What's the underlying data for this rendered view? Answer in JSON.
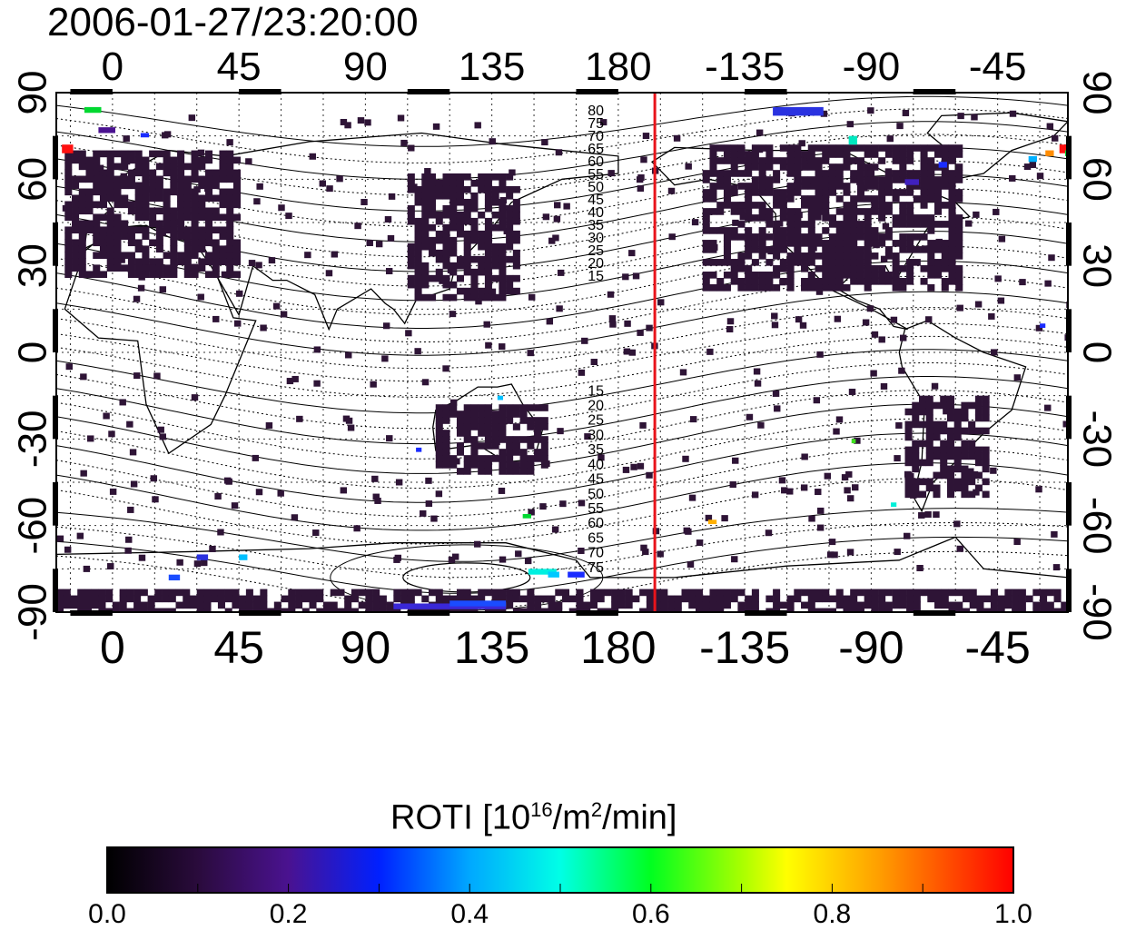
{
  "title": "2006-01-27/23:20:00",
  "map": {
    "lon_ticks": [
      {
        "lon": 0,
        "label": "0"
      },
      {
        "lon": 45,
        "label": "45"
      },
      {
        "lon": 90,
        "label": "90"
      },
      {
        "lon": 135,
        "label": "135"
      },
      {
        "lon": 180,
        "label": "180"
      },
      {
        "lon": 225,
        "label": "-135"
      },
      {
        "lon": 270,
        "label": "-90"
      },
      {
        "lon": 315,
        "label": "-45"
      }
    ],
    "lat_ticks": [
      {
        "lat": 90,
        "label": "90"
      },
      {
        "lat": 60,
        "label": "60"
      },
      {
        "lat": 30,
        "label": "30"
      },
      {
        "lat": 0,
        "label": "0"
      },
      {
        "lat": -30,
        "label": "-30"
      },
      {
        "lat": -60,
        "label": "-60"
      },
      {
        "lat": -90,
        "label": "-90"
      }
    ],
    "lon_range": [
      -20,
      340
    ],
    "lat_range": [
      -90,
      90
    ],
    "terminator_lon": 193,
    "contour_labels_north": [
      "80",
      "75",
      "70",
      "65",
      "60",
      "55",
      "50",
      "45",
      "40",
      "35",
      "30",
      "25",
      "20",
      "15"
    ],
    "contour_labels_south": [
      "15",
      "20",
      "25",
      "30",
      "35",
      "40",
      "45",
      "50",
      "55",
      "60",
      "65",
      "70",
      "75"
    ],
    "colors": {
      "terminator": "#e8141b",
      "background_data": "#2e1436"
    }
  },
  "colorbar": {
    "title_text": "ROTI  [10",
    "title_sup1": "16",
    "title_mid": "/m",
    "title_sup2": "2",
    "title_end": "/min]",
    "min": 0.0,
    "max": 1.0,
    "tick_labels": [
      "0.0",
      "0.2",
      "0.4",
      "0.6",
      "0.8",
      "1.0"
    ]
  }
}
